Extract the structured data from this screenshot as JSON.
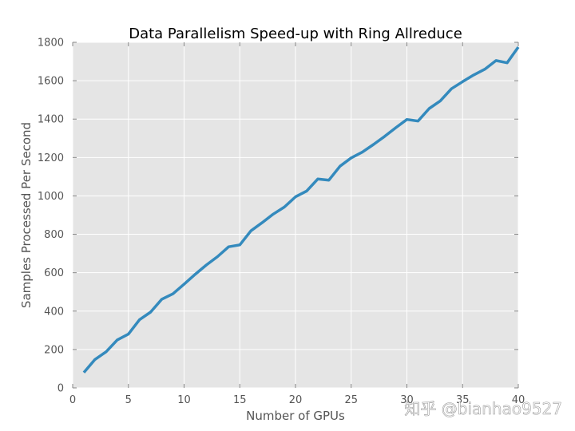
{
  "chart_data": {
    "type": "line",
    "title": "Data Parallelism Speed-up with Ring Allreduce",
    "xlabel": "Number of GPUs",
    "ylabel": "Samples Processed Per Second",
    "xlim": [
      0,
      40
    ],
    "ylim": [
      0,
      1800
    ],
    "xticks": [
      0,
      5,
      10,
      15,
      20,
      25,
      30,
      35,
      40
    ],
    "yticks": [
      0,
      200,
      400,
      600,
      800,
      1000,
      1200,
      1400,
      1600,
      1800
    ],
    "grid": true,
    "series": [
      {
        "name": "throughput",
        "color": "#348abd",
        "x": [
          1,
          2,
          3,
          4,
          5,
          6,
          7,
          8,
          9,
          10,
          11,
          12,
          13,
          14,
          15,
          16,
          17,
          18,
          19,
          20,
          21,
          22,
          23,
          24,
          25,
          26,
          27,
          28,
          29,
          30,
          31,
          32,
          33,
          34,
          35,
          36,
          37,
          38,
          39,
          40
        ],
        "values": [
          80,
          148,
          188,
          250,
          280,
          355,
          395,
          462,
          490,
          540,
          592,
          640,
          684,
          735,
          745,
          818,
          860,
          905,
          942,
          995,
          1025,
          1088,
          1082,
          1155,
          1198,
          1228,
          1268,
          1310,
          1355,
          1398,
          1390,
          1455,
          1495,
          1558,
          1595,
          1630,
          1660,
          1705,
          1693,
          1775
        ]
      }
    ],
    "background": "#e5e5e5",
    "gridColor": "#ffffff"
  },
  "watermark": "知乎 @bianhao9527"
}
